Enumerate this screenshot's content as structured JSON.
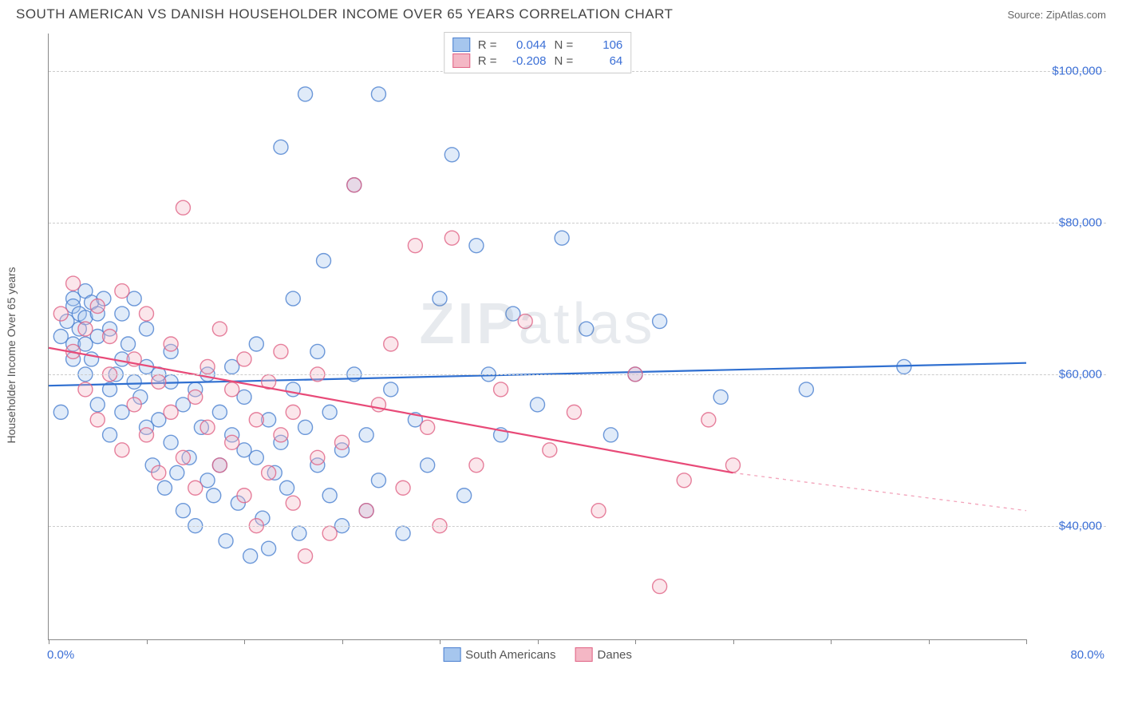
{
  "header": {
    "title": "SOUTH AMERICAN VS DANISH HOUSEHOLDER INCOME OVER 65 YEARS CORRELATION CHART",
    "source": "Source: ZipAtlas.com"
  },
  "chart": {
    "type": "scatter",
    "ylabel": "Householder Income Over 65 years",
    "xlim": [
      0,
      80
    ],
    "ylim": [
      25000,
      105000
    ],
    "x_axis_label_lo": "0.0%",
    "x_axis_label_hi": "80.0%",
    "x_tick_positions": [
      0,
      8,
      16,
      24,
      32,
      40,
      48,
      56,
      64,
      72,
      80
    ],
    "y_ticks": [
      {
        "value": 40000,
        "label": "$40,000"
      },
      {
        "value": 60000,
        "label": "$60,000"
      },
      {
        "value": 80000,
        "label": "$80,000"
      },
      {
        "value": 100000,
        "label": "$100,000"
      }
    ],
    "grid_color": "#cccccc",
    "axis_color": "#888888",
    "background_color": "#ffffff",
    "marker_radius": 9,
    "marker_fill_opacity": 0.35,
    "marker_stroke_opacity": 0.8,
    "watermark": "ZIPatlas",
    "series": [
      {
        "id": "south_americans",
        "label": "South Americans",
        "color_fill": "#a6c6ee",
        "color_stroke": "#4a7fd0",
        "R": "0.044",
        "N": "106",
        "regression": {
          "x1": 0,
          "y1": 58500,
          "x2": 80,
          "y2": 61500,
          "stroke": "#2f6fd0",
          "width": 2.2
        },
        "points": [
          [
            1,
            65000
          ],
          [
            1,
            55000
          ],
          [
            1.5,
            67000
          ],
          [
            2,
            62000
          ],
          [
            2,
            70000
          ],
          [
            2,
            69000
          ],
          [
            2,
            64000
          ],
          [
            2.5,
            66000
          ],
          [
            2.5,
            68000
          ],
          [
            3,
            67500
          ],
          [
            3,
            64000
          ],
          [
            3,
            60000
          ],
          [
            3,
            71000
          ],
          [
            3.5,
            69500
          ],
          [
            3.5,
            62000
          ],
          [
            4,
            68000
          ],
          [
            4,
            65000
          ],
          [
            4,
            56000
          ],
          [
            4.5,
            70000
          ],
          [
            5,
            66000
          ],
          [
            5,
            58000
          ],
          [
            5,
            52000
          ],
          [
            5.5,
            60000
          ],
          [
            6,
            62000
          ],
          [
            6,
            55000
          ],
          [
            6,
            68000
          ],
          [
            6.5,
            64000
          ],
          [
            7,
            59000
          ],
          [
            7,
            70000
          ],
          [
            7.5,
            57000
          ],
          [
            8,
            61000
          ],
          [
            8,
            53000
          ],
          [
            8,
            66000
          ],
          [
            8.5,
            48000
          ],
          [
            9,
            54000
          ],
          [
            9,
            60000
          ],
          [
            9.5,
            45000
          ],
          [
            10,
            59000
          ],
          [
            10,
            51000
          ],
          [
            10,
            63000
          ],
          [
            10.5,
            47000
          ],
          [
            11,
            56000
          ],
          [
            11,
            42000
          ],
          [
            11.5,
            49000
          ],
          [
            12,
            58000
          ],
          [
            12,
            40000
          ],
          [
            12.5,
            53000
          ],
          [
            13,
            46000
          ],
          [
            13,
            60000
          ],
          [
            13.5,
            44000
          ],
          [
            14,
            55000
          ],
          [
            14,
            48000
          ],
          [
            14.5,
            38000
          ],
          [
            15,
            52000
          ],
          [
            15,
            61000
          ],
          [
            15.5,
            43000
          ],
          [
            16,
            50000
          ],
          [
            16,
            57000
          ],
          [
            16.5,
            36000
          ],
          [
            17,
            49000
          ],
          [
            17,
            64000
          ],
          [
            17.5,
            41000
          ],
          [
            18,
            54000
          ],
          [
            18,
            37000
          ],
          [
            18.5,
            47000
          ],
          [
            19,
            51000
          ],
          [
            19,
            90000
          ],
          [
            19.5,
            45000
          ],
          [
            20,
            58000
          ],
          [
            20,
            70000
          ],
          [
            20.5,
            39000
          ],
          [
            21,
            53000
          ],
          [
            21,
            97000
          ],
          [
            22,
            48000
          ],
          [
            22,
            63000
          ],
          [
            22.5,
            75000
          ],
          [
            23,
            44000
          ],
          [
            23,
            55000
          ],
          [
            24,
            50000
          ],
          [
            24,
            40000
          ],
          [
            25,
            60000
          ],
          [
            25,
            85000
          ],
          [
            26,
            52000
          ],
          [
            26,
            42000
          ],
          [
            27,
            97000
          ],
          [
            27,
            46000
          ],
          [
            28,
            58000
          ],
          [
            29,
            39000
          ],
          [
            30,
            54000
          ],
          [
            31,
            48000
          ],
          [
            32,
            70000
          ],
          [
            33,
            89000
          ],
          [
            34,
            44000
          ],
          [
            35,
            77000
          ],
          [
            36,
            60000
          ],
          [
            37,
            52000
          ],
          [
            38,
            68000
          ],
          [
            40,
            56000
          ],
          [
            42,
            78000
          ],
          [
            44,
            66000
          ],
          [
            46,
            52000
          ],
          [
            48,
            60000
          ],
          [
            50,
            67000
          ],
          [
            55,
            57000
          ],
          [
            62,
            58000
          ],
          [
            70,
            61000
          ]
        ]
      },
      {
        "id": "danes",
        "label": "Danes",
        "color_fill": "#f4b7c5",
        "color_stroke": "#e06284",
        "R": "-0.208",
        "N": "64",
        "regression": {
          "x1": 0,
          "y1": 63500,
          "x2": 56,
          "y2": 47000,
          "stroke": "#e84a78",
          "width": 2.2,
          "extrap_to_x": 80,
          "extrap_y": 42000
        },
        "points": [
          [
            1,
            68000
          ],
          [
            2,
            63000
          ],
          [
            2,
            72000
          ],
          [
            3,
            66000
          ],
          [
            3,
            58000
          ],
          [
            4,
            69000
          ],
          [
            4,
            54000
          ],
          [
            5,
            60000
          ],
          [
            5,
            65000
          ],
          [
            6,
            71000
          ],
          [
            6,
            50000
          ],
          [
            7,
            62000
          ],
          [
            7,
            56000
          ],
          [
            8,
            68000
          ],
          [
            8,
            52000
          ],
          [
            9,
            59000
          ],
          [
            9,
            47000
          ],
          [
            10,
            64000
          ],
          [
            10,
            55000
          ],
          [
            11,
            49000
          ],
          [
            11,
            82000
          ],
          [
            12,
            57000
          ],
          [
            12,
            45000
          ],
          [
            13,
            61000
          ],
          [
            13,
            53000
          ],
          [
            14,
            48000
          ],
          [
            14,
            66000
          ],
          [
            15,
            51000
          ],
          [
            15,
            58000
          ],
          [
            16,
            44000
          ],
          [
            16,
            62000
          ],
          [
            17,
            54000
          ],
          [
            17,
            40000
          ],
          [
            18,
            59000
          ],
          [
            18,
            47000
          ],
          [
            19,
            52000
          ],
          [
            19,
            63000
          ],
          [
            20,
            43000
          ],
          [
            20,
            55000
          ],
          [
            21,
            36000
          ],
          [
            22,
            49000
          ],
          [
            22,
            60000
          ],
          [
            23,
            39000
          ],
          [
            24,
            51000
          ],
          [
            25,
            85000
          ],
          [
            26,
            42000
          ],
          [
            27,
            56000
          ],
          [
            28,
            64000
          ],
          [
            29,
            45000
          ],
          [
            30,
            77000
          ],
          [
            31,
            53000
          ],
          [
            32,
            40000
          ],
          [
            33,
            78000
          ],
          [
            35,
            48000
          ],
          [
            37,
            58000
          ],
          [
            39,
            67000
          ],
          [
            41,
            50000
          ],
          [
            43,
            55000
          ],
          [
            45,
            42000
          ],
          [
            48,
            60000
          ],
          [
            50,
            32000
          ],
          [
            52,
            46000
          ],
          [
            54,
            54000
          ],
          [
            56,
            48000
          ]
        ]
      }
    ],
    "top_legend": {
      "R_label": "R =",
      "N_label": "N ="
    },
    "bottom_legend": {
      "items": [
        "South Americans",
        "Danes"
      ]
    }
  }
}
